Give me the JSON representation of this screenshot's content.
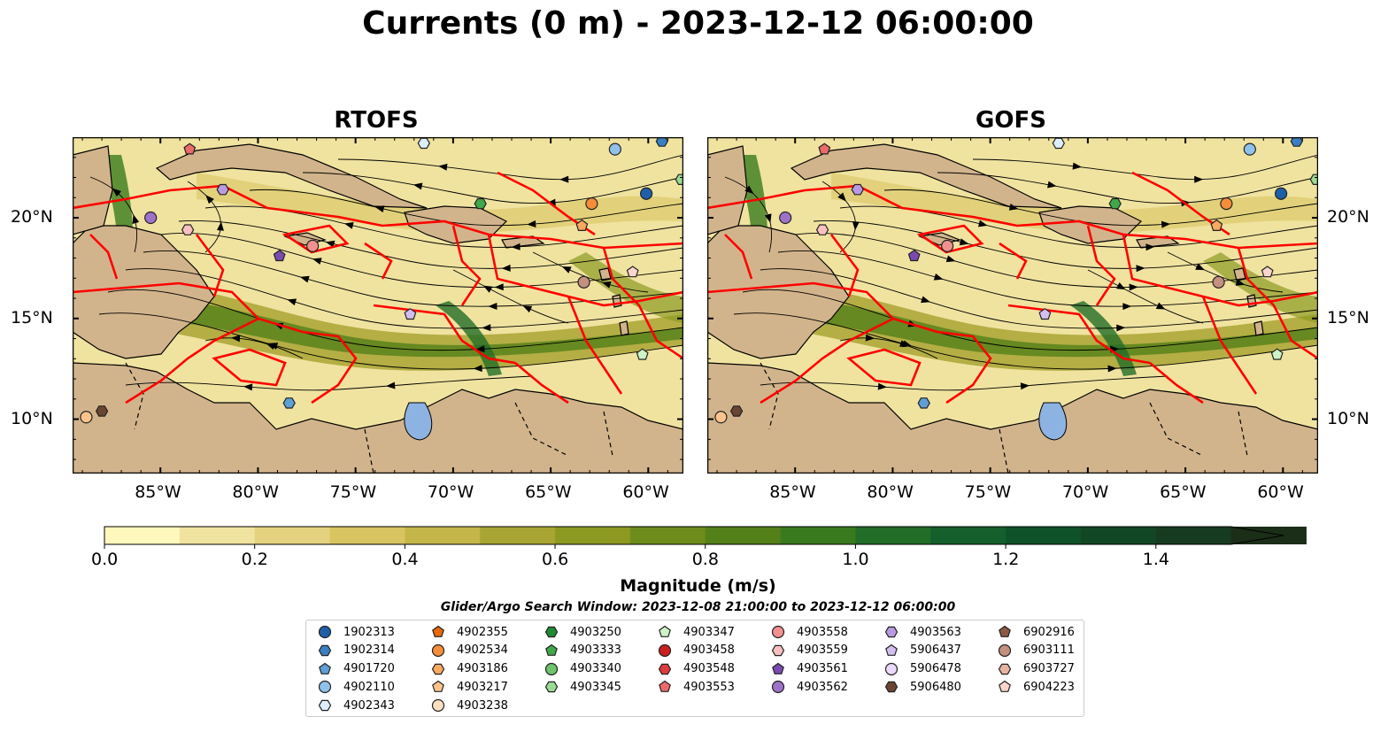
{
  "title": "Currents (0 m) - 2023-12-12 06:00:00",
  "panels": [
    {
      "title": "RTOFS"
    },
    {
      "title": "GOFS"
    }
  ],
  "map": {
    "lon_ticks": [
      "85°W",
      "80°W",
      "75°W",
      "70°W",
      "65°W",
      "60°W"
    ],
    "lat_ticks": [
      "20°N",
      "15°N",
      "10°N"
    ],
    "land_color": "#d2b48c",
    "eez_color": "#ff0000",
    "lake_color": "#8db3e2"
  },
  "colorbar": {
    "label": "Magnitude (m/s)",
    "ticks": [
      "0.0",
      "0.2",
      "0.4",
      "0.6",
      "0.8",
      "1.0",
      "1.2",
      "1.4"
    ],
    "colors": [
      "#fff7bc",
      "#f0e3a0",
      "#e4d280",
      "#d8c461",
      "#c5b64a",
      "#a9a534",
      "#8c9a22",
      "#6e8c1c",
      "#538019",
      "#3a7a1e",
      "#226d27",
      "#145f2b",
      "#0f5229",
      "#124726",
      "#173b20",
      "#1b2e18"
    ],
    "range": [
      0,
      1.5
    ],
    "extend": "max"
  },
  "legend": {
    "title": "Glider/Argo Search Window: 2023-12-08 21:00:00 to 2023-12-12 06:00:00",
    "items": [
      {
        "label": "1902313",
        "marker": "circle",
        "color": "#1f5fa8"
      },
      {
        "label": "1902314",
        "marker": "hexagon",
        "color": "#3a7fc1"
      },
      {
        "label": "4901720",
        "marker": "pentagon",
        "color": "#5e9fd6"
      },
      {
        "label": "4902110",
        "marker": "circle",
        "color": "#8fc1ea"
      },
      {
        "label": "4902343",
        "marker": "hexagon",
        "color": "#dceefb"
      },
      {
        "label": "4902355",
        "marker": "pentagon",
        "color": "#e8690a"
      },
      {
        "label": "4902534",
        "marker": "circle",
        "color": "#f58d3a"
      },
      {
        "label": "4903186",
        "marker": "hexagon",
        "color": "#f9a960"
      },
      {
        "label": "4903217",
        "marker": "pentagon",
        "color": "#fcc48c"
      },
      {
        "label": "4903238",
        "marker": "circle",
        "color": "#fde0c2"
      },
      {
        "label": "4903250",
        "marker": "hexagon",
        "color": "#1f8a32"
      },
      {
        "label": "4903333",
        "marker": "pentagon",
        "color": "#3fa84a"
      },
      {
        "label": "4903340",
        "marker": "circle",
        "color": "#6cc46b"
      },
      {
        "label": "4903345",
        "marker": "hexagon",
        "color": "#9adb94"
      },
      {
        "label": "4903347",
        "marker": "pentagon",
        "color": "#cdf3c6"
      },
      {
        "label": "4903458",
        "marker": "circle",
        "color": "#cb1f1f"
      },
      {
        "label": "4903548",
        "marker": "hexagon",
        "color": "#de3c3c"
      },
      {
        "label": "4903553",
        "marker": "pentagon",
        "color": "#ec6a6a"
      },
      {
        "label": "4903558",
        "marker": "circle",
        "color": "#f29090"
      },
      {
        "label": "4903559",
        "marker": "hexagon",
        "color": "#f8c0c0"
      },
      {
        "label": "4903561",
        "marker": "pentagon",
        "color": "#7a4ab0"
      },
      {
        "label": "4903562",
        "marker": "circle",
        "color": "#9f72c9"
      },
      {
        "label": "4903563",
        "marker": "hexagon",
        "color": "#b99ae0"
      },
      {
        "label": "5906437",
        "marker": "pentagon",
        "color": "#d4bdf0"
      },
      {
        "label": "5906478",
        "marker": "circle",
        "color": "#ead9fa"
      },
      {
        "label": "5906480",
        "marker": "hexagon",
        "color": "#6a4533"
      },
      {
        "label": "6902916",
        "marker": "pentagon",
        "color": "#8a5a45"
      },
      {
        "label": "6903111",
        "marker": "circle",
        "color": "#c4907f"
      },
      {
        "label": "6903727",
        "marker": "hexagon",
        "color": "#e7b3a1"
      },
      {
        "label": "6904223",
        "marker": "pentagon",
        "color": "#f8d6cb"
      }
    ]
  }
}
